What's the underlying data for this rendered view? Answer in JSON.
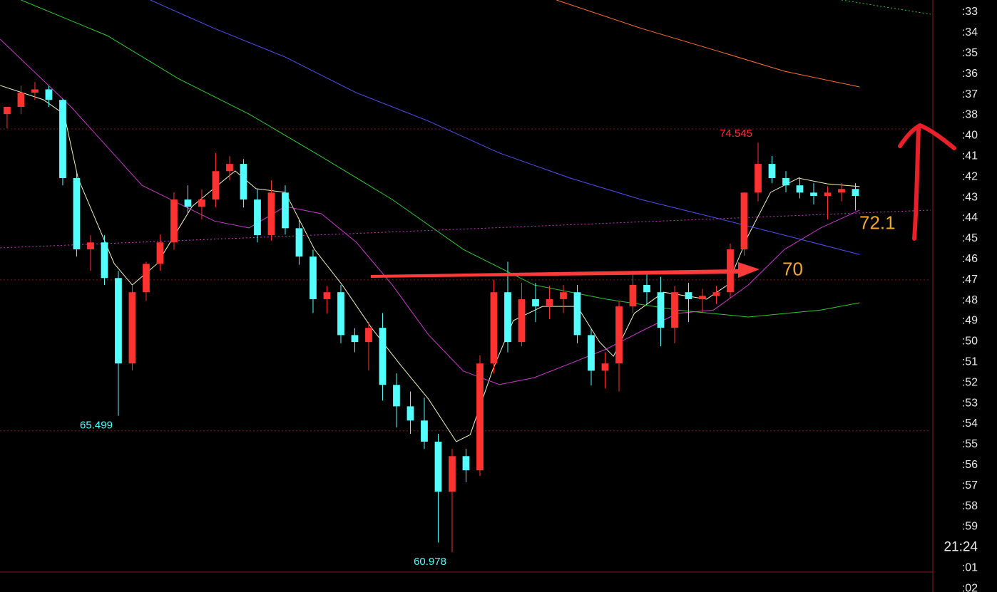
{
  "chart_data": {
    "type": "candlestick",
    "xlim": [
      -0.51,
      66.41
    ],
    "ylim": [
      59.66,
      79.27
    ],
    "up_color": "#ff3232",
    "down_color": "#54ffff",
    "ohlc": [
      [
        75.49,
        75.73,
        75.02,
        75.73
      ],
      [
        75.73,
        76.43,
        75.49,
        76.2
      ],
      [
        76.2,
        76.55,
        75.96,
        76.31
      ],
      [
        76.31,
        76.43,
        75.73,
        75.96
      ],
      [
        75.96,
        76.0,
        73.13,
        73.37
      ],
      [
        73.37,
        73.6,
        70.77,
        71.01
      ],
      [
        71.01,
        71.48,
        70.3,
        71.24
      ],
      [
        71.24,
        71.48,
        69.83,
        70.06
      ],
      [
        70.06,
        70.3,
        65.499,
        67.23
      ],
      [
        67.23,
        69.83,
        67.0,
        69.59
      ],
      [
        69.59,
        70.6,
        69.3,
        70.53
      ],
      [
        70.53,
        71.5,
        70.3,
        71.24
      ],
      [
        71.24,
        72.9,
        71.0,
        72.66
      ],
      [
        72.66,
        73.13,
        72.19,
        72.42
      ],
      [
        72.42,
        73.0,
        72.0,
        72.66
      ],
      [
        72.66,
        74.2,
        72.4,
        73.6
      ],
      [
        73.6,
        74.1,
        73.3,
        73.84
      ],
      [
        73.84,
        74.0,
        72.4,
        72.66
      ],
      [
        72.66,
        73.0,
        71.24,
        71.48
      ],
      [
        71.48,
        73.3,
        71.3,
        72.89
      ],
      [
        72.89,
        73.13,
        71.5,
        71.71
      ],
      [
        71.71,
        72.0,
        70.5,
        70.77
      ],
      [
        70.77,
        71.0,
        68.9,
        69.36
      ],
      [
        69.36,
        69.8,
        68.88,
        69.59
      ],
      [
        69.59,
        69.83,
        67.9,
        68.17
      ],
      [
        68.17,
        68.4,
        67.6,
        67.94
      ],
      [
        67.94,
        68.6,
        67.0,
        68.41
      ],
      [
        68.41,
        68.9,
        66.0,
        66.52
      ],
      [
        66.52,
        66.9,
        65.11,
        65.81
      ],
      [
        65.81,
        66.3,
        64.9,
        65.34
      ],
      [
        65.34,
        66.1,
        64.4,
        64.64
      ],
      [
        64.64,
        64.9,
        61.3,
        62.98
      ],
      [
        62.98,
        64.4,
        60.978,
        64.16
      ],
      [
        64.16,
        64.4,
        63.3,
        63.69
      ],
      [
        63.69,
        67.5,
        63.5,
        67.23
      ],
      [
        67.23,
        70.0,
        66.9,
        69.59
      ],
      [
        69.59,
        70.6,
        67.6,
        67.94
      ],
      [
        67.94,
        69.9,
        67.8,
        69.36
      ],
      [
        69.36,
        69.9,
        68.6,
        69.12
      ],
      [
        69.12,
        69.8,
        68.7,
        69.36
      ],
      [
        69.36,
        69.83,
        68.9,
        69.59
      ],
      [
        69.59,
        69.83,
        67.9,
        68.17
      ],
      [
        68.17,
        68.4,
        66.5,
        66.99
      ],
      [
        66.99,
        67.6,
        66.4,
        67.23
      ],
      [
        67.23,
        69.3,
        66.3,
        69.12
      ],
      [
        69.12,
        70.3,
        68.9,
        69.83
      ],
      [
        69.83,
        70.2,
        69.2,
        69.59
      ],
      [
        69.59,
        70.1,
        67.8,
        68.41
      ],
      [
        68.41,
        69.8,
        67.9,
        69.59
      ],
      [
        69.59,
        69.9,
        68.6,
        69.36
      ],
      [
        69.36,
        69.7,
        68.9,
        69.47
      ],
      [
        69.47,
        69.8,
        69.2,
        69.59
      ],
      [
        69.59,
        71.2,
        69.4,
        71.01
      ],
      [
        71.01,
        72.9,
        70.8,
        72.89
      ],
      [
        72.89,
        74.545,
        72.6,
        73.84
      ],
      [
        73.84,
        74.1,
        73.2,
        73.37
      ],
      [
        73.37,
        73.6,
        72.9,
        73.13
      ],
      [
        73.13,
        73.4,
        72.7,
        72.89
      ],
      [
        72.89,
        73.2,
        72.5,
        72.78
      ],
      [
        72.78,
        73.1,
        72.0,
        72.89
      ],
      [
        72.89,
        73.2,
        72.6,
        73.01
      ],
      [
        73.01,
        73.2,
        72.3,
        72.78
      ]
    ],
    "series": [
      {
        "color": "#f2f2c0",
        "style": "solid",
        "x": [
          -0.5,
          2.6,
          4.1,
          5.1,
          7.7,
          9.0,
          10.8,
          13.3,
          16.4,
          17.9,
          20.0,
          22.1,
          24.1,
          26.2,
          28.2,
          30.3,
          32.3,
          33.3,
          34.9,
          36.4,
          38.5,
          41.0,
          42.6,
          43.6,
          45.1,
          47.2,
          50.3,
          51.8,
          53.3,
          54.9,
          56.9,
          59.0,
          61.3
        ],
        "values": [
          76.44,
          75.97,
          75.49,
          73.37,
          70.54,
          69.83,
          70.54,
          72.43,
          73.61,
          73.02,
          72.9,
          71.01,
          69.83,
          68.41,
          67.23,
          66.05,
          64.64,
          64.87,
          67.0,
          68.65,
          69.12,
          69.12,
          67.94,
          67.47,
          68.89,
          69.59,
          69.36,
          69.83,
          71.48,
          72.9,
          73.37,
          73.18,
          73.09
        ]
      },
      {
        "color": "#c83cc8",
        "style": "solid",
        "x": [
          -0.5,
          4.6,
          9.7,
          14.9,
          17.4,
          20.0,
          22.6,
          25.1,
          27.7,
          30.3,
          32.8,
          35.4,
          37.9,
          40.5,
          43.1,
          45.6,
          48.2,
          50.8,
          53.3,
          55.9,
          58.5,
          61.3
        ],
        "values": [
          77.97,
          75.73,
          73.13,
          71.95,
          71.72,
          72.43,
          72.19,
          71.25,
          69.83,
          68.18,
          66.98,
          66.53,
          66.76,
          67.23,
          67.71,
          68.3,
          68.89,
          69.0,
          69.83,
          71.01,
          71.72,
          72.31
        ]
      },
      {
        "color": "#32c832",
        "style": "solid",
        "x": [
          1.0,
          7.2,
          12.3,
          17.4,
          22.6,
          27.7,
          32.8,
          37.9,
          43.1,
          48.2,
          53.3,
          58.5,
          61.3
        ],
        "values": [
          79.27,
          78.09,
          76.67,
          75.49,
          74.08,
          72.66,
          71.01,
          69.83,
          69.36,
          69.0,
          68.77,
          69.0,
          69.24
        ]
      },
      {
        "color": "#5050f0",
        "style": "solid",
        "x": [
          10.3,
          14.9,
          20.0,
          25.1,
          30.3,
          35.4,
          40.5,
          45.6,
          50.8,
          55.9,
          61.3
        ],
        "values": [
          79.27,
          78.33,
          77.38,
          76.2,
          75.26,
          74.2,
          73.37,
          72.66,
          72.07,
          71.48,
          70.84
        ]
      },
      {
        "color": "#ff7030",
        "style": "solid",
        "x": [
          39.5,
          45.6,
          50.8,
          55.9,
          61.3
        ],
        "values": [
          79.27,
          78.33,
          77.62,
          76.91,
          76.39
        ]
      },
      {
        "color": "#32c832",
        "style": "dotted",
        "x": [
          60.0,
          66.4
        ],
        "values": [
          79.27,
          78.8
        ]
      },
      {
        "color": "#c83cc8",
        "style": "dotted",
        "x": [
          -0.5,
          66.4
        ],
        "values": [
          71.06,
          72.31
        ]
      }
    ],
    "levels": [
      75,
      70,
      65
    ],
    "level_color": "#7a1a1a",
    "high_label": 74.545,
    "low_labels": [
      65.499,
      60.978
    ],
    "notes": [
      70,
      72.1
    ],
    "time_list": [
      ":33",
      ":34",
      ":35",
      ":36",
      ":37",
      ":38",
      ":40",
      ":41",
      ":42",
      ":43",
      ":44",
      ":45",
      ":46",
      ":47",
      ":48",
      ":49",
      ":50",
      ":51",
      ":52",
      ":53",
      ":54",
      ":55",
      ":56",
      ":57",
      ":58",
      ":59",
      "21:24",
      ":01",
      ":02"
    ]
  }
}
